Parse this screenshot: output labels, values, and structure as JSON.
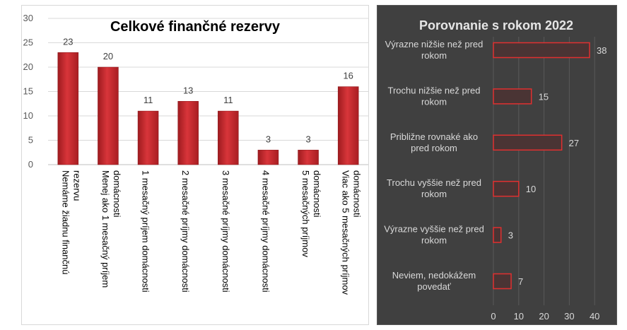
{
  "chart_data": [
    {
      "type": "bar",
      "title": "Celkové finančné rezervy",
      "ylim": [
        0,
        30
      ],
      "y_ticks": [
        "0",
        "5",
        "10",
        "15",
        "20",
        "25",
        "30"
      ],
      "grid": true,
      "categories": [
        [
          "Nemáme žiadnu finančnú",
          "rezervu"
        ],
        [
          "Menej ako 1 mesačný príjem",
          "domácnosti"
        ],
        [
          "1 mesačný príjem domácnosti"
        ],
        [
          "2 mesačné príjmy domácnosti"
        ],
        [
          "3 mesačné príjmy domácnosti"
        ],
        [
          "4 mesačné príjmy domácnosti"
        ],
        [
          "5 mesačných príjmov",
          "domácnosti"
        ],
        [
          "Viac ako 5 mesačných príjmov",
          "domácnosti"
        ]
      ],
      "values": [
        23,
        20,
        11,
        13,
        11,
        3,
        3,
        16
      ],
      "value_labels": [
        "23",
        "20",
        "11",
        "13",
        "11",
        "3",
        "3",
        "16"
      ],
      "bar_color": "#c0282d"
    },
    {
      "type": "bar",
      "orientation": "horizontal",
      "title": "Porovnanie s rokom 2022",
      "xlim": [
        0,
        40
      ],
      "x_ticks": [
        "0",
        "10",
        "20",
        "30",
        "40"
      ],
      "grid": true,
      "categories": [
        [
          "Výrazne nižšie než pred",
          "rokom"
        ],
        [
          "Trochu nižšie než pred",
          "rokom"
        ],
        [
          "Približne rovnaké ako",
          "pred rokom"
        ],
        [
          "Trochu vyššie než pred",
          "rokom"
        ],
        [
          "Výrazne vyššie než pred",
          "rokom"
        ],
        [
          "Neviem, nedokážem",
          "povedať"
        ]
      ],
      "values": [
        38,
        15,
        27,
        10,
        3,
        7
      ],
      "value_labels": [
        "38",
        "15",
        "27",
        "10",
        "3",
        "7"
      ],
      "bar_color": "#e03030",
      "background": "#404040"
    }
  ]
}
